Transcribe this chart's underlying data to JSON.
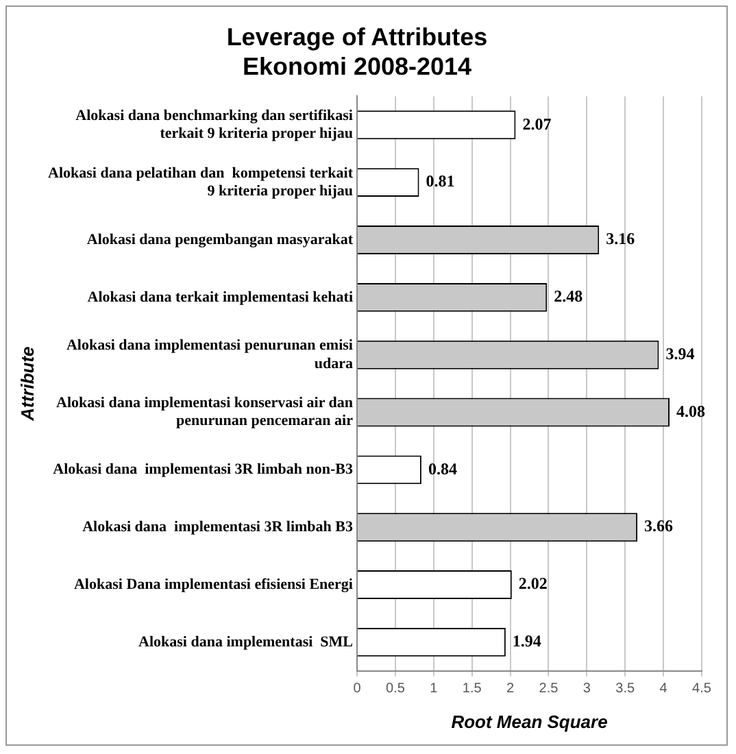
{
  "chart_data": {
    "type": "bar",
    "orientation": "horizontal",
    "title": "Leverage of Attributes\nEkonomi 2008-2014",
    "xlabel": "Root Mean Square",
    "ylabel": "Attribute",
    "categories": [
      "Alokasi dana benchmarking dan sertifikasi terkait 9 kriteria proper hijau",
      "Alokasi dana pelatihan dan  kompetensi terkait 9 kriteria proper hijau",
      "Alokasi dana pengembangan masyarakat",
      "Alokasi dana terkait implementasi kehati",
      "Alokasi dana implementasi penurunan emisi udara",
      "Alokasi dana implementasi konservasi air dan penurunan pencemaran air",
      "Alokasi dana  implementasi 3R limbah non-B3",
      "Alokasi dana  implementasi 3R limbah B3",
      "Alokasi Dana implementasi efisiensi Energi",
      "Alokasi dana implementasi  SML"
    ],
    "values": [
      2.07,
      0.81,
      3.16,
      2.48,
      3.94,
      4.08,
      0.84,
      3.66,
      2.02,
      1.94
    ],
    "colors": [
      "#ffffff",
      "#ffffff",
      "#c8c8c8",
      "#c8c8c8",
      "#c8c8c8",
      "#c8c8c8",
      "#ffffff",
      "#c8c8c8",
      "#ffffff",
      "#ffffff"
    ],
    "xlim": [
      0,
      4.5
    ],
    "xticks": [
      0,
      0.5,
      1,
      1.5,
      2,
      2.5,
      3,
      3.5,
      4,
      4.5
    ],
    "grid": "x",
    "legend": false,
    "data_labels": true
  }
}
